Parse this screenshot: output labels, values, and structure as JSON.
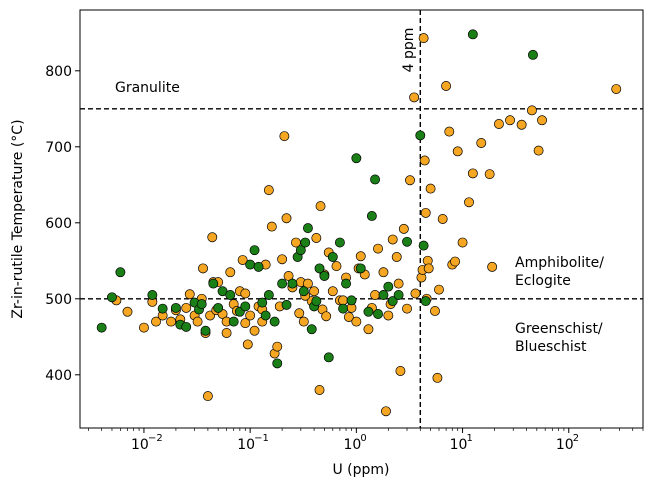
{
  "chart_data": {
    "type": "scatter",
    "title": "",
    "xlabel": "U (ppm)",
    "ylabel": "Zr-in-rutile Temperature (°C)",
    "xscale": "log",
    "xlim": [
      0.0025,
      500
    ],
    "ylim": [
      330,
      880
    ],
    "grid": false,
    "xticks": [
      {
        "value": 0.01,
        "base": "10",
        "exp": "−2"
      },
      {
        "value": 0.1,
        "base": "10",
        "exp": "−1"
      },
      {
        "value": 1,
        "base": "10",
        "exp": "0"
      },
      {
        "value": 10,
        "base": "10",
        "exp": "1"
      },
      {
        "value": 100,
        "base": "10",
        "exp": "2"
      }
    ],
    "yticks": [
      400,
      500,
      600,
      700,
      800
    ],
    "reference_lines": {
      "vertical": {
        "x": 4,
        "label": "4 ppm"
      },
      "horizontal": [
        750,
        500
      ]
    },
    "annotations": {
      "granulite": "Granulite",
      "amphibolite_l1": "Amphibolite/",
      "amphibolite_l2": "Eclogite",
      "greenschist_l1": "Greenschist/",
      "greenschist_l2": "Blueschist"
    },
    "series": [
      {
        "color": "#f5a623",
        "points": [
          [
            0.0055,
            498
          ],
          [
            0.007,
            483
          ],
          [
            0.01,
            462
          ],
          [
            0.012,
            496
          ],
          [
            0.013,
            470
          ],
          [
            0.015,
            478
          ],
          [
            0.018,
            470
          ],
          [
            0.02,
            485
          ],
          [
            0.022,
            473
          ],
          [
            0.025,
            488
          ],
          [
            0.027,
            506
          ],
          [
            0.03,
            478
          ],
          [
            0.032,
            470
          ],
          [
            0.035,
            500
          ],
          [
            0.036,
            540
          ],
          [
            0.038,
            455
          ],
          [
            0.04,
            372
          ],
          [
            0.042,
            478
          ],
          [
            0.044,
            581
          ],
          [
            0.045,
            522
          ],
          [
            0.048,
            485
          ],
          [
            0.05,
            522
          ],
          [
            0.055,
            480
          ],
          [
            0.06,
            470
          ],
          [
            0.065,
            535
          ],
          [
            0.07,
            493
          ],
          [
            0.075,
            484
          ],
          [
            0.08,
            510
          ],
          [
            0.085,
            551
          ],
          [
            0.09,
            468
          ],
          [
            0.095,
            440
          ],
          [
            0.1,
            478
          ],
          [
            0.11,
            458
          ],
          [
            0.12,
            490
          ],
          [
            0.13,
            486
          ],
          [
            0.14,
            545
          ],
          [
            0.15,
            643
          ],
          [
            0.16,
            595
          ],
          [
            0.17,
            428
          ],
          [
            0.18,
            437
          ],
          [
            0.19,
            490
          ],
          [
            0.2,
            552
          ],
          [
            0.21,
            714
          ],
          [
            0.22,
            606
          ],
          [
            0.23,
            530
          ],
          [
            0.25,
            515
          ],
          [
            0.27,
            574
          ],
          [
            0.29,
            481
          ],
          [
            0.3,
            522
          ],
          [
            0.32,
            470
          ],
          [
            0.35,
            520
          ],
          [
            0.38,
            497
          ],
          [
            0.4,
            510
          ],
          [
            0.42,
            580
          ],
          [
            0.45,
            380
          ],
          [
            0.46,
            622
          ],
          [
            0.48,
            486
          ],
          [
            0.5,
            532
          ],
          [
            0.55,
            561
          ],
          [
            0.6,
            510
          ],
          [
            0.65,
            543
          ],
          [
            0.7,
            498
          ],
          [
            0.75,
            498
          ],
          [
            0.8,
            528
          ],
          [
            0.85,
            476
          ],
          [
            0.9,
            488
          ],
          [
            1.0,
            470
          ],
          [
            1.05,
            540
          ],
          [
            1.1,
            556
          ],
          [
            1.2,
            532
          ],
          [
            1.3,
            460
          ],
          [
            1.4,
            488
          ],
          [
            1.5,
            505
          ],
          [
            1.6,
            566
          ],
          [
            1.8,
            535
          ],
          [
            1.9,
            352
          ],
          [
            2.0,
            478
          ],
          [
            2.2,
            578
          ],
          [
            2.4,
            555
          ],
          [
            2.5,
            520
          ],
          [
            2.6,
            405
          ],
          [
            2.8,
            592
          ],
          [
            3.0,
            487
          ],
          [
            3.2,
            656
          ],
          [
            3.5,
            765
          ],
          [
            4.1,
            528
          ],
          [
            4.2,
            538
          ],
          [
            4.3,
            843
          ],
          [
            4.4,
            682
          ],
          [
            4.5,
            613
          ],
          [
            4.7,
            550
          ],
          [
            5.0,
            645
          ],
          [
            5.5,
            484
          ],
          [
            5.8,
            396
          ],
          [
            6.0,
            512
          ],
          [
            6.5,
            605
          ],
          [
            7.0,
            780
          ],
          [
            7.5,
            720
          ],
          [
            8.0,
            545
          ],
          [
            8.5,
            549
          ],
          [
            9.0,
            694
          ],
          [
            10.0,
            574
          ],
          [
            11.5,
            627
          ],
          [
            12.5,
            665
          ],
          [
            15.0,
            705
          ],
          [
            18.0,
            664
          ],
          [
            19.0,
            542
          ],
          [
            22.0,
            730
          ],
          [
            28.0,
            735
          ],
          [
            36.0,
            729
          ],
          [
            45.0,
            748
          ],
          [
            52.0,
            695
          ],
          [
            56.0,
            735
          ],
          [
            280.0,
            776
          ],
          [
            4.6,
            500
          ],
          [
            4.8,
            540
          ],
          [
            3.6,
            507
          ],
          [
            2.1,
            493
          ],
          [
            0.33,
            504
          ],
          [
            0.52,
            477
          ],
          [
            0.09,
            507
          ],
          [
            0.13,
            470
          ],
          [
            0.06,
            455
          ]
        ]
      },
      {
        "color": "#1b7f17",
        "points": [
          [
            0.004,
            462
          ],
          [
            0.005,
            502
          ],
          [
            0.006,
            535
          ],
          [
            0.012,
            505
          ],
          [
            0.015,
            487
          ],
          [
            0.02,
            488
          ],
          [
            0.022,
            466
          ],
          [
            0.025,
            463
          ],
          [
            0.03,
            495
          ],
          [
            0.033,
            486
          ],
          [
            0.035,
            493
          ],
          [
            0.038,
            458
          ],
          [
            0.045,
            520
          ],
          [
            0.05,
            488
          ],
          [
            0.055,
            510
          ],
          [
            0.07,
            470
          ],
          [
            0.08,
            483
          ],
          [
            0.09,
            490
          ],
          [
            0.1,
            545
          ],
          [
            0.11,
            564
          ],
          [
            0.12,
            542
          ],
          [
            0.13,
            495
          ],
          [
            0.15,
            505
          ],
          [
            0.17,
            470
          ],
          [
            0.18,
            415
          ],
          [
            0.2,
            520
          ],
          [
            0.25,
            520
          ],
          [
            0.28,
            555
          ],
          [
            0.3,
            564
          ],
          [
            0.33,
            574
          ],
          [
            0.35,
            593
          ],
          [
            0.38,
            460
          ],
          [
            0.4,
            490
          ],
          [
            0.45,
            540
          ],
          [
            0.5,
            530
          ],
          [
            0.55,
            423
          ],
          [
            0.6,
            555
          ],
          [
            0.7,
            574
          ],
          [
            0.8,
            520
          ],
          [
            0.9,
            498
          ],
          [
            1.0,
            685
          ],
          [
            1.1,
            540
          ],
          [
            1.3,
            483
          ],
          [
            1.4,
            609
          ],
          [
            1.5,
            657
          ],
          [
            1.6,
            480
          ],
          [
            1.8,
            505
          ],
          [
            2.0,
            516
          ],
          [
            2.2,
            497
          ],
          [
            2.5,
            505
          ],
          [
            3.0,
            575
          ],
          [
            4.0,
            715
          ],
          [
            4.3,
            570
          ],
          [
            4.5,
            497
          ],
          [
            12.5,
            848
          ],
          [
            46.0,
            821
          ],
          [
            0.065,
            505
          ],
          [
            0.14,
            478
          ],
          [
            0.22,
            492
          ],
          [
            0.32,
            510
          ],
          [
            0.42,
            497
          ],
          [
            0.75,
            487
          ]
        ]
      }
    ]
  }
}
